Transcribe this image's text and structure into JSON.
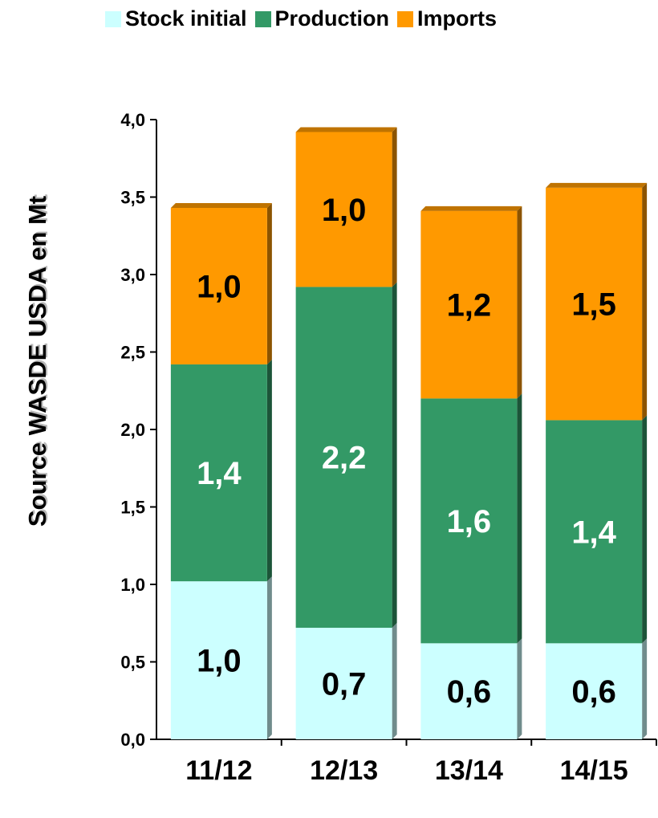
{
  "chart_data": {
    "type": "bar",
    "stacked": true,
    "categories": [
      "11/12",
      "12/13",
      "13/14",
      "14/15"
    ],
    "series": [
      {
        "name": "Stock initial",
        "values": [
          1.02,
          0.72,
          0.62,
          0.62
        ],
        "labels": [
          "1,0",
          "0,7",
          "0,6",
          "0,6"
        ],
        "color": "#ccffff",
        "label_color": "#000000"
      },
      {
        "name": "Production",
        "values": [
          1.4,
          2.2,
          1.58,
          1.44
        ],
        "labels": [
          "1,4",
          "2,2",
          "1,6",
          "1,4"
        ],
        "color": "#339966",
        "label_color": "#ffffff"
      },
      {
        "name": "Imports",
        "values": [
          1.01,
          1.0,
          1.21,
          1.5
        ],
        "labels": [
          "1,0",
          "1,0",
          "1,2",
          "1,5"
        ],
        "color": "#ff9900",
        "label_color": "#000000"
      }
    ],
    "ylabel": "Source WASDE USDA en Mt",
    "xlabel": "",
    "ylim": [
      0,
      4
    ],
    "yticks": [
      0,
      0.5,
      1.0,
      1.5,
      2.0,
      2.5,
      3.0,
      3.5,
      4.0
    ],
    "ytick_labels": [
      "0,0",
      "0,5",
      "1,0",
      "1,5",
      "2,0",
      "2,5",
      "3,0",
      "3,5",
      "4,0"
    ],
    "legend_position": "top",
    "grid": false
  }
}
